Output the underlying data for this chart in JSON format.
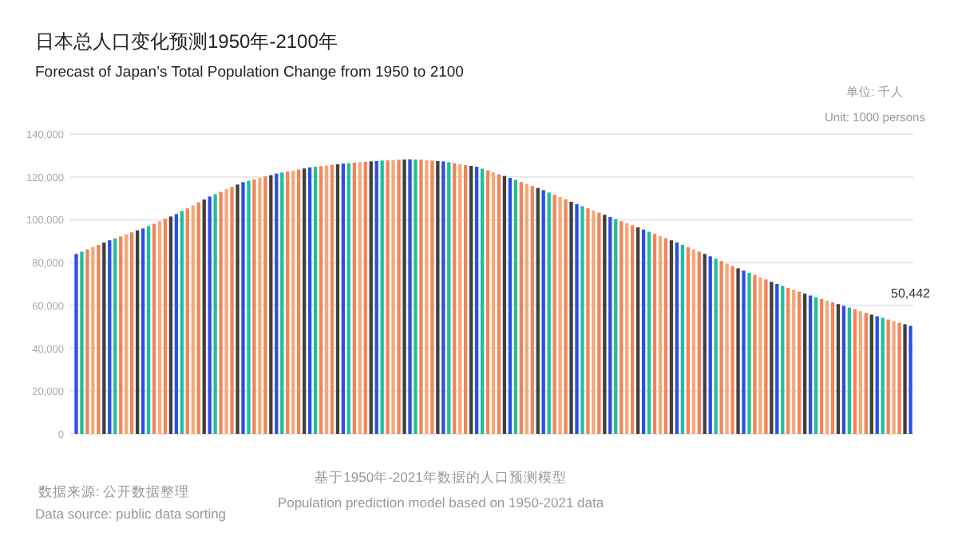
{
  "chart_data": {
    "type": "bar",
    "title": "日本总人口变化预测1950年-2100年",
    "subtitle": "Forecast of Japan’s Total Population Change from 1950 to 2100",
    "annotations": [
      "单位: 千人",
      "Unit: 1000 persons",
      "基于1950年-2021年数据的人口预测模型",
      "Population prediction model based on 1950-2021 data",
      "数据来源: 公开数据整理",
      "Data source: public data sorting"
    ],
    "categories": [
      null,
      null,
      null,
      null,
      null,
      null,
      null,
      null,
      null,
      null,
      null,
      null,
      null,
      null,
      null,
      null,
      null,
      null,
      null,
      null,
      null,
      null,
      null,
      null,
      null,
      null,
      null,
      null,
      null,
      null,
      null,
      null,
      null,
      null,
      null,
      null,
      null,
      null,
      null,
      null,
      null,
      null,
      null,
      null,
      null,
      null,
      null,
      null,
      null,
      null,
      null,
      null,
      null,
      null,
      null,
      null,
      null,
      null,
      null,
      null,
      null,
      null,
      null,
      null,
      null,
      null,
      null,
      null,
      null,
      null,
      null,
      null,
      null,
      null,
      null,
      null,
      null,
      null,
      null,
      null,
      null,
      null,
      null,
      null,
      null,
      null,
      null,
      null,
      null,
      null,
      null,
      null,
      null,
      null,
      null,
      null,
      null,
      null,
      null,
      null,
      null,
      null,
      null,
      null,
      null,
      null,
      null,
      null,
      null,
      null,
      null,
      null,
      null,
      null,
      null,
      null,
      null,
      null,
      null,
      null,
      null,
      null,
      null,
      null,
      null,
      null,
      null,
      null,
      null,
      null,
      null,
      null,
      null,
      null,
      null,
      null,
      null,
      null,
      null,
      null,
      null,
      null,
      null,
      null,
      null,
      null,
      null,
      null,
      null,
      null,
      null
    ],
    "values": [
      84000,
      85100,
      86100,
      87200,
      88300,
      89300,
      90400,
      91300,
      92200,
      93200,
      94100,
      95000,
      95900,
      97000,
      98100,
      99300,
      100400,
      101500,
      102600,
      104000,
      105300,
      106700,
      108100,
      109400,
      110800,
      111900,
      113000,
      114200,
      115300,
      116400,
      117500,
      118200,
      118800,
      119500,
      120200,
      120800,
      121500,
      122000,
      122500,
      122900,
      123400,
      123900,
      124400,
      124700,
      125000,
      125300,
      125600,
      125900,
      126200,
      126400,
      126600,
      126800,
      127000,
      127200,
      127400,
      127600,
      127700,
      127800,
      128000,
      128100,
      128200,
      128100,
      128000,
      127800,
      127600,
      127400,
      127200,
      126800,
      126400,
      125900,
      125500,
      125100,
      124700,
      123800,
      123000,
      122100,
      121200,
      120400,
      119500,
      118600,
      117600,
      116700,
      115700,
      114800,
      113800,
      112700,
      111600,
      110600,
      109500,
      108400,
      107300,
      106300,
      105300,
      104300,
      103300,
      102300,
      101300,
      100300,
      99300,
      98400,
      97400,
      96400,
      95400,
      94400,
      93400,
      92400,
      91400,
      90400,
      89400,
      88300,
      87200,
      86200,
      85100,
      84000,
      82900,
      81800,
      80700,
      79500,
      78400,
      77300,
      76200,
      75200,
      74100,
      73100,
      72100,
      71000,
      70000,
      69100,
      68200,
      67300,
      66400,
      65500,
      64600,
      63800,
      63000,
      62200,
      61400,
      60600,
      59800,
      59000,
      58200,
      57300,
      56500,
      55700,
      54900,
      54200,
      53400,
      52700,
      51900,
      51200,
      50442
    ],
    "colors": [
      "#2d4fe0",
      "#1fbf9a",
      "#f0855a",
      "#f5a878",
      "#f0855a",
      "#3f3f3f",
      "#2d4fe0",
      "#1fbf9a",
      "#f0855a",
      "#f5a878",
      "#f0855a",
      "#3f3f3f",
      "#2d4fe0",
      "#1fbf9a",
      "#f0855a",
      "#f5a878",
      "#f0855a",
      "#3f3f3f",
      "#2d4fe0",
      "#1fbf9a",
      "#f0855a",
      "#f5a878",
      "#f0855a",
      "#3f3f3f",
      "#2d4fe0",
      "#1fbf9a",
      "#f0855a",
      "#f5a878",
      "#f0855a",
      "#3f3f3f",
      "#2d4fe0",
      "#1fbf9a",
      "#f0855a",
      "#f5a878",
      "#f0855a",
      "#3f3f3f",
      "#2d4fe0",
      "#1fbf9a",
      "#f0855a",
      "#f5a878",
      "#f0855a",
      "#3f3f3f",
      "#2d4fe0",
      "#1fbf9a",
      "#f0855a",
      "#f5a878",
      "#f0855a",
      "#3f3f3f",
      "#2d4fe0",
      "#1fbf9a",
      "#f0855a",
      "#f5a878",
      "#f0855a",
      "#3f3f3f",
      "#2d4fe0",
      "#1fbf9a",
      "#f0855a",
      "#f5a878",
      "#f0855a",
      "#3f3f3f",
      "#2d4fe0",
      "#1fbf9a",
      "#f0855a",
      "#f5a878",
      "#f0855a",
      "#3f3f3f",
      "#2d4fe0",
      "#1fbf9a",
      "#f0855a",
      "#f5a878",
      "#f0855a",
      "#3f3f3f",
      "#2d4fe0",
      "#1fbf9a",
      "#f0855a",
      "#f5a878",
      "#f0855a",
      "#3f3f3f",
      "#2d4fe0",
      "#1fbf9a",
      "#f0855a",
      "#f5a878",
      "#f0855a",
      "#3f3f3f",
      "#2d4fe0",
      "#1fbf9a",
      "#f0855a",
      "#f5a878",
      "#f0855a",
      "#3f3f3f",
      "#2d4fe0",
      "#1fbf9a",
      "#f0855a",
      "#f5a878",
      "#f0855a",
      "#3f3f3f",
      "#2d4fe0",
      "#1fbf9a",
      "#f0855a",
      "#f5a878",
      "#f0855a",
      "#3f3f3f",
      "#2d4fe0",
      "#1fbf9a",
      "#f0855a",
      "#f5a878",
      "#f0855a",
      "#3f3f3f",
      "#2d4fe0",
      "#1fbf9a",
      "#f0855a",
      "#f5a878",
      "#f0855a",
      "#3f3f3f",
      "#2d4fe0",
      "#1fbf9a",
      "#f0855a",
      "#f5a878",
      "#f0855a",
      "#3f3f3f",
      "#2d4fe0",
      "#1fbf9a",
      "#f0855a",
      "#f5a878",
      "#f0855a",
      "#3f3f3f",
      "#2d4fe0",
      "#1fbf9a",
      "#f0855a",
      "#f5a878",
      "#f0855a",
      "#3f3f3f",
      "#2d4fe0",
      "#1fbf9a",
      "#f0855a",
      "#f5a878",
      "#f0855a",
      "#3f3f3f",
      "#2d4fe0",
      "#1fbf9a",
      "#f0855a",
      "#f5a878",
      "#f0855a",
      "#3f3f3f",
      "#2d4fe0",
      "#1fbf9a",
      "#f0855a",
      "#f5a878",
      "#f0855a",
      "#3f3f3f",
      "#2d4fe0"
    ],
    "value_labels": [
      null,
      null,
      null,
      null,
      null,
      null,
      null,
      null,
      null,
      null,
      null,
      null,
      null,
      null,
      null,
      null,
      null,
      null,
      null,
      null,
      null,
      null,
      null,
      null,
      null,
      null,
      null,
      null,
      null,
      null,
      null,
      null,
      null,
      null,
      null,
      null,
      null,
      null,
      null,
      null,
      null,
      null,
      null,
      null,
      null,
      null,
      null,
      null,
      null,
      null,
      null,
      null,
      null,
      null,
      null,
      null,
      null,
      null,
      null,
      null,
      null,
      null,
      null,
      null,
      null,
      null,
      null,
      null,
      null,
      null,
      null,
      null,
      null,
      null,
      null,
      null,
      null,
      null,
      null,
      null,
      null,
      null,
      null,
      null,
      null,
      null,
      null,
      null,
      null,
      null,
      null,
      null,
      null,
      null,
      null,
      null,
      null,
      null,
      null,
      null,
      null,
      null,
      null,
      null,
      null,
      null,
      null,
      null,
      null,
      null,
      null,
      null,
      null,
      null,
      null,
      null,
      null,
      null,
      null,
      null,
      null,
      null,
      null,
      null,
      null,
      null,
      null,
      null,
      null,
      null,
      null,
      null,
      null,
      null,
      null,
      null,
      null,
      null,
      null,
      null,
      null,
      null,
      null,
      null,
      null,
      null,
      null,
      null,
      null,
      null,
      "50,442"
    ],
    "ylim": [
      0,
      140000
    ],
    "yticks": [
      0,
      {
        "value": 20000,
        "label": "20,000"
      },
      {
        "value": 40000,
        "label": "40,000"
      },
      {
        "value": 60000,
        "label": "60,000"
      },
      {
        "value": 80000,
        "label": "80,000"
      },
      {
        "value": 100000,
        "label": "100,000"
      },
      {
        "value": 120000,
        "label": "120,000"
      },
      {
        "value": 140000,
        "label": "140,000"
      }
    ],
    "grid": "y"
  }
}
